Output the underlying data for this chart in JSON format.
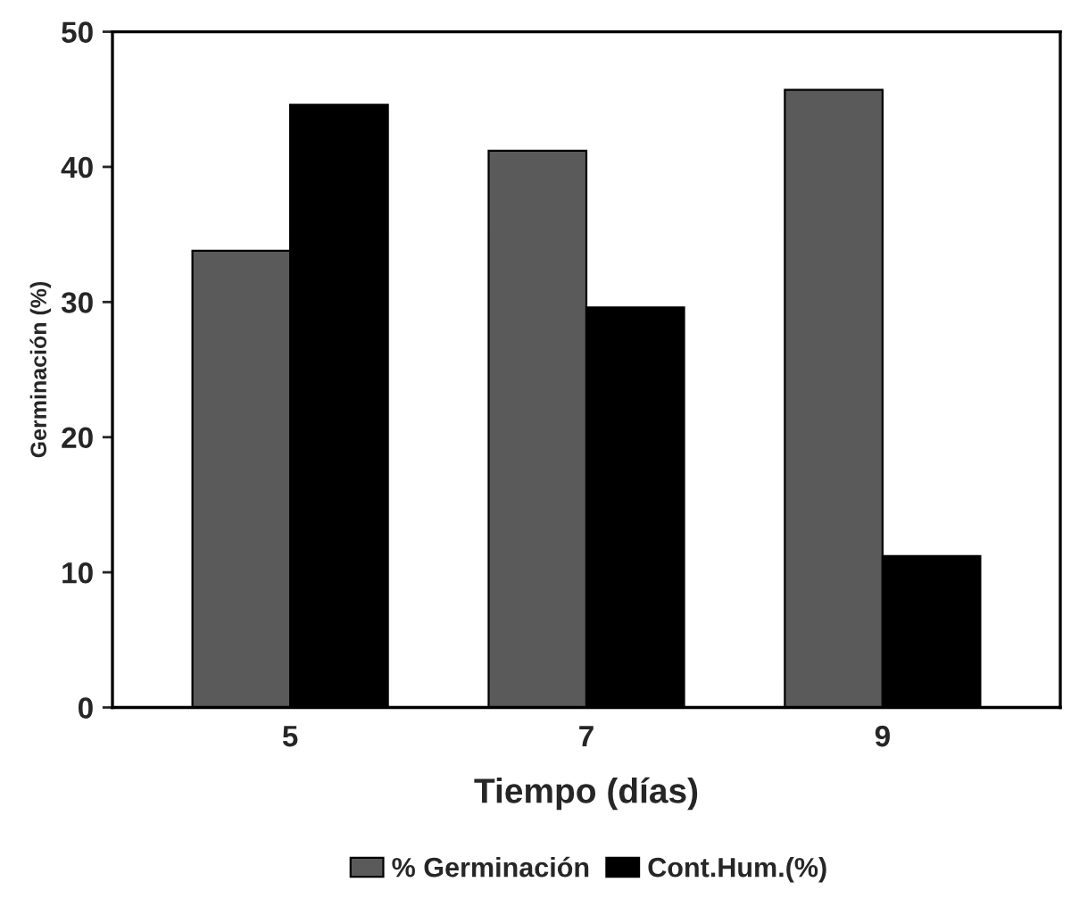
{
  "chart_data": {
    "type": "bar",
    "xlabel": "Tiempo (días)",
    "ylabel": "Germinación (%)",
    "categories": [
      "5",
      "7",
      "9"
    ],
    "series": [
      {
        "name": "% Germinación",
        "color": "#5a5a5a",
        "values": [
          33.8,
          41.2,
          45.7
        ]
      },
      {
        "name": "Cont.Hum.(%)",
        "color": "#000000",
        "values": [
          44.6,
          29.6,
          11.2
        ]
      }
    ],
    "ylim": [
      0,
      50
    ],
    "yticks": [
      0,
      10,
      20,
      30,
      40,
      50
    ],
    "grid": false,
    "legend": "bottom"
  }
}
